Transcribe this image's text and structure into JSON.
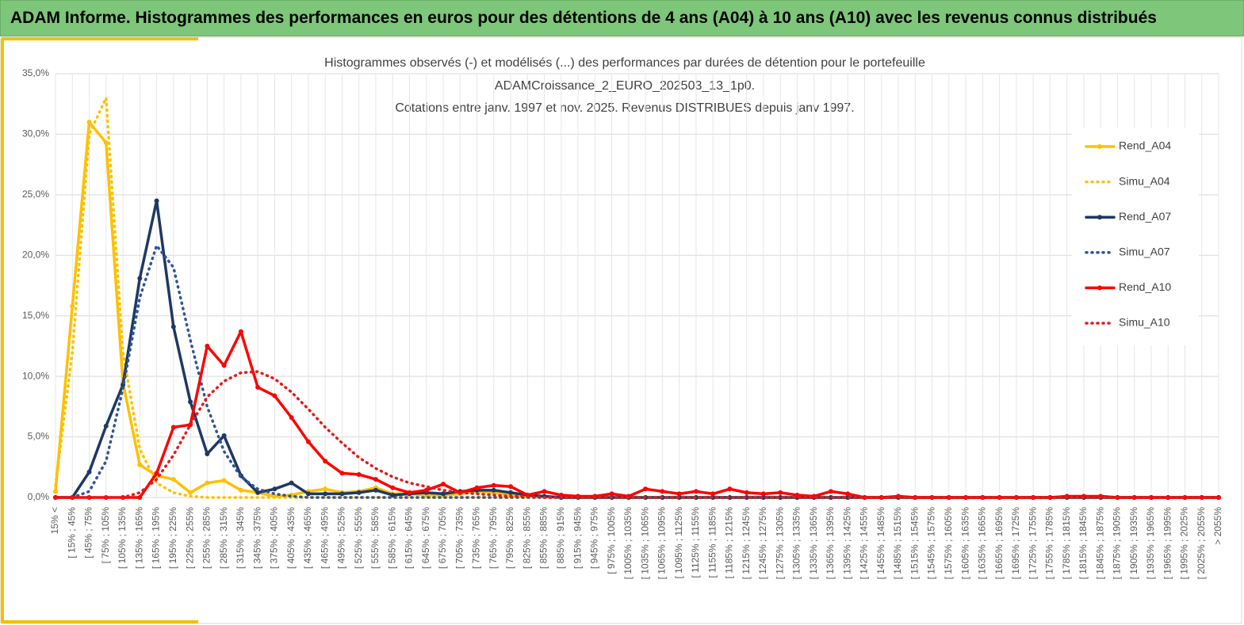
{
  "header": {
    "title": "ADAM Informe. Histogrammes des performances en euros pour des détentions de 4 ans (A04) à 10 ans (A10) avec les revenus connus distribués"
  },
  "chart_data": {
    "type": "line",
    "title": [
      "Histogrammes observés (-) et modélisés (...) des performances par durées de détention pour le portefeuille",
      "ADAMCroissance_2_EURO_202503_13_1p0.",
      "Cotations entre janv. 1997 et nov. 2025. Revenus DISTRIBUES depuis janv 1997."
    ],
    "categories": [
      "15% <",
      "[ 15% ; 45%",
      "[ 45% ; 75%",
      "[ 75% ; 105%",
      "[ 105% ; 135%",
      "[ 135% ; 165%",
      "[ 165% ; 195%",
      "[ 195% ; 225%",
      "[ 225% ; 255%",
      "[ 255% ; 285%",
      "[ 285% ; 315%",
      "[ 315% ; 345%",
      "[ 345% ; 375%",
      "[ 375% ; 405%",
      "[ 405% ; 435%",
      "[ 435% ; 465%",
      "[ 465% ; 495%",
      "[ 495% ; 525%",
      "[ 525% ; 555%",
      "[ 555% ; 585%",
      "[ 585% ; 615%",
      "[ 615% ; 645%",
      "[ 645% ; 675%",
      "[ 675% ; 705%",
      "[ 705% ; 735%",
      "[ 735% ; 765%",
      "[ 765% ; 795%",
      "[ 795% ; 825%",
      "[ 825% ; 855%",
      "[ 855% ; 885%",
      "[ 885% ; 915%",
      "[ 915% ; 945%",
      "[ 945% ; 975%",
      "[ 975% ; 1005%",
      "[ 1005% ; 1035%",
      "[ 1035% ; 1065%",
      "[ 1065% ; 1095%",
      "[ 1095% ; 1125%",
      "[ 1125% ; 1155%",
      "[ 1155% ; 1185%",
      "[ 1185% ; 1215%",
      "[ 1215% ; 1245%",
      "[ 1245% ; 1275%",
      "[ 1275% ; 1305%",
      "[ 1305% ; 1335%",
      "[ 1335% ; 1365%",
      "[ 1365% ; 1395%",
      "[ 1395% ; 1425%",
      "[ 1425% ; 1455%",
      "[ 1455% ; 1485%",
      "[ 1485% ; 1515%",
      "[ 1515% ; 1545%",
      "[ 1545% ; 1575%",
      "[ 1575% ; 1605%",
      "[ 1605% ; 1635%",
      "[ 1635% ; 1665%",
      "[ 1665% ; 1695%",
      "[ 1695% ; 1725%",
      "[ 1725% ; 1755%",
      "[ 1755% ; 1785%",
      "[ 1785% ; 1815%",
      "[ 1815% ; 1845%",
      "[ 1845% ; 1875%",
      "[ 1875% ; 1905%",
      "[ 1905% ; 1935%",
      "[ 1935% ; 1965%",
      "[ 1965% ; 1995%",
      "[ 1995% ; 2025%",
      "[ 2025% ; 2055%",
      "> 2055%"
    ],
    "series": [
      {
        "name": "Rend_A04",
        "color": "#ffc000",
        "line_style": "solid",
        "markers": true,
        "values": [
          0.5,
          15.8,
          31.0,
          29.3,
          9.5,
          2.7,
          1.8,
          1.5,
          0.4,
          1.2,
          1.4,
          0.6,
          0.4,
          0.1,
          0.2,
          0.5,
          0.7,
          0.4,
          0.5,
          0.8,
          0.3,
          0.3,
          0.2,
          0.2,
          0.3,
          0.5,
          0.4,
          0.2,
          0.1,
          0.1,
          0,
          0,
          0,
          0,
          0,
          0,
          0,
          0,
          0,
          0,
          0,
          0,
          0,
          0,
          0,
          0,
          0,
          0,
          0,
          0,
          0,
          0,
          0,
          0,
          0,
          0,
          0,
          0,
          0,
          0,
          0,
          0,
          0,
          0,
          0,
          0,
          0,
          0,
          0,
          0
        ]
      },
      {
        "name": "Simu_A04",
        "color": "#ffc000",
        "line_style": "dotted",
        "markers": false,
        "values": [
          1.0,
          12,
          30,
          33,
          12,
          4,
          1.2,
          0.4,
          0.1,
          0,
          0,
          0,
          0,
          0,
          0,
          0,
          0,
          0,
          0,
          0,
          0,
          0,
          0,
          0,
          0,
          0,
          0,
          0,
          0,
          0,
          0,
          0,
          0,
          0,
          0,
          0,
          0,
          0,
          0,
          0,
          0,
          0,
          0,
          0,
          0,
          0,
          0,
          0,
          0,
          0,
          0,
          0,
          0,
          0,
          0,
          0,
          0,
          0,
          0,
          0,
          0,
          0,
          0,
          0,
          0,
          0,
          0,
          0,
          0,
          0
        ]
      },
      {
        "name": "Rend_A07",
        "color": "#1f3864",
        "line_style": "solid",
        "markers": true,
        "values": [
          0,
          0,
          2.1,
          5.9,
          9.3,
          18.1,
          24.5,
          14.1,
          7.9,
          3.6,
          5.1,
          1.8,
          0.4,
          0.7,
          1.2,
          0.3,
          0.3,
          0.3,
          0.4,
          0.6,
          0.2,
          0.3,
          0.4,
          0.3,
          0.5,
          0.6,
          0.6,
          0.4,
          0.2,
          0.1,
          0,
          0,
          0,
          0,
          0,
          0,
          0,
          0,
          0,
          0,
          0,
          0,
          0,
          0,
          0,
          0,
          0,
          0,
          0,
          0,
          0,
          0,
          0,
          0,
          0,
          0,
          0,
          0,
          0,
          0,
          0,
          0,
          0,
          0,
          0,
          0,
          0,
          0,
          0,
          0
        ]
      },
      {
        "name": "Simu_A07",
        "color": "#2f5597",
        "line_style": "dotted",
        "markers": false,
        "values": [
          0,
          0,
          0.5,
          3,
          9,
          16.5,
          20.8,
          19,
          13,
          7.5,
          3.8,
          1.7,
          0.7,
          0.3,
          0.1,
          0,
          0,
          0,
          0,
          0,
          0,
          0,
          0,
          0,
          0,
          0,
          0,
          0,
          0,
          0,
          0,
          0,
          0,
          0,
          0,
          0,
          0,
          0,
          0,
          0,
          0,
          0,
          0,
          0,
          0,
          0,
          0,
          0,
          0,
          0,
          0,
          0,
          0,
          0,
          0,
          0,
          0,
          0,
          0,
          0,
          0,
          0,
          0,
          0,
          0,
          0,
          0,
          0,
          0,
          0
        ]
      },
      {
        "name": "Rend_A10",
        "color": "#ff0000",
        "line_style": "solid",
        "markers": true,
        "values": [
          0,
          0,
          0,
          0,
          0,
          0,
          2.0,
          5.8,
          6.0,
          12.5,
          10.9,
          13.7,
          9.1,
          8.4,
          6.6,
          4.6,
          3.0,
          2.0,
          1.9,
          1.5,
          0.8,
          0.4,
          0.6,
          1.1,
          0.4,
          0.8,
          1.0,
          0.9,
          0.2,
          0.5,
          0.2,
          0.1,
          0.1,
          0.3,
          0.1,
          0.7,
          0.5,
          0.3,
          0.5,
          0.3,
          0.7,
          0.4,
          0.3,
          0.4,
          0.2,
          0.1,
          0.5,
          0.3,
          0,
          0,
          0.1,
          0,
          0,
          0,
          0,
          0,
          0,
          0,
          0,
          0,
          0.1,
          0.1,
          0.1,
          0,
          0,
          0,
          0,
          0,
          0,
          0
        ]
      },
      {
        "name": "Simu_A10",
        "color": "#e31a1c",
        "line_style": "dotted",
        "markers": false,
        "values": [
          0,
          0,
          0,
          0,
          0,
          0.4,
          1.5,
          3.5,
          6,
          8.3,
          9.6,
          10.3,
          10.4,
          9.8,
          8.7,
          7.3,
          5.8,
          4.5,
          3.3,
          2.4,
          1.7,
          1.2,
          0.9,
          0.6,
          0.4,
          0.3,
          0.2,
          0.1,
          0.1,
          0,
          0,
          0,
          0,
          0,
          0,
          0,
          0,
          0,
          0,
          0,
          0,
          0,
          0,
          0,
          0,
          0,
          0,
          0,
          0,
          0,
          0,
          0,
          0,
          0,
          0,
          0,
          0,
          0,
          0,
          0,
          0,
          0,
          0,
          0,
          0,
          0,
          0,
          0,
          0,
          0
        ]
      }
    ],
    "ylim": [
      0,
      35
    ],
    "yticks": [
      {
        "value": 0,
        "label": "0,0%"
      },
      {
        "value": 5,
        "label": "5,0%"
      },
      {
        "value": 10,
        "label": "10,0%"
      },
      {
        "value": 15,
        "label": "15,0%"
      },
      {
        "value": 20,
        "label": "20,0%"
      },
      {
        "value": 25,
        "label": "25,0%"
      },
      {
        "value": 30,
        "label": "30,0%"
      },
      {
        "value": 35,
        "label": "35,0%"
      }
    ],
    "grid": true,
    "legend": "right"
  }
}
